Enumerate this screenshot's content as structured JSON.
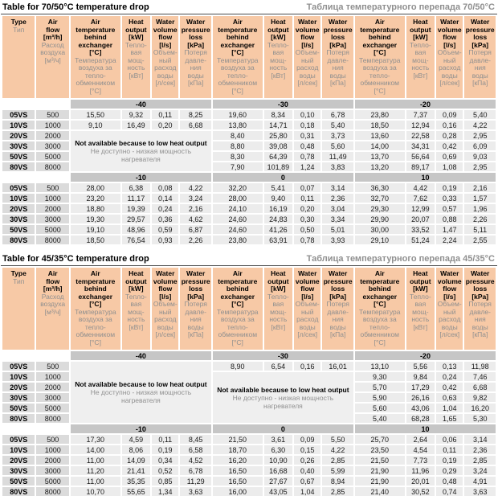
{
  "page": {
    "headers": {
      "type": {
        "en": "Type",
        "ru": "Тип"
      },
      "flow": {
        "en": "Air\nflow\n[m³/h]",
        "ru": "Расход\nвоздуха\n[м³/ч]"
      },
      "group_cols": [
        {
          "en": "Air\ntemperature\nbehind\nexchanger\n[°C]",
          "ru": "Температура\nвоздуха за\nтепло-\nобменником\n[°C]"
        },
        {
          "en": "Heat\noutput\n[kW]",
          "ru": "Тепло-\nвая\nмощ-\nность\n[кВт]"
        },
        {
          "en": "Water\nvolume\nflow\n[l/s]",
          "ru": "Объем-\nный\nрасход\nводы\n[л/сек]"
        },
        {
          "en": "Water\npressure\nloss\n[kPa]",
          "ru": "Потеря\nдавле-\nния\nводы\n[кПа]"
        }
      ]
    },
    "na_text": {
      "en": "Not available because to low heat output",
      "ru": "Не доступно - низкая мощность нагревателя"
    },
    "colors": {
      "header_bg": "#f7c9a6",
      "band_bg": "#c6c6c6",
      "label_bg": "#dbdbdb",
      "cell_bg": "#ececec",
      "ru_text": "#8f8f8f"
    },
    "tables": [
      {
        "title_en": "Table for 70/50°C temperature drop",
        "title_ru": "Таблица температурного перепада 70/50°C",
        "sections": [
          {
            "temps": [
              "-40",
              "-30",
              "-20"
            ],
            "na_blocks": [
              {
                "group": 0,
                "start": 2,
                "span": 4
              }
            ],
            "rows": [
              {
                "type": "05VS",
                "flow": "500",
                "groups": [
                  [
                    "15,50",
                    "9,32",
                    "0,11",
                    "8,25"
                  ],
                  [
                    "19,60",
                    "8,34",
                    "0,10",
                    "6,78"
                  ],
                  [
                    "23,80",
                    "7,37",
                    "0,09",
                    "5,40"
                  ]
                ]
              },
              {
                "type": "10VS",
                "flow": "1000",
                "groups": [
                  [
                    "9,10",
                    "16,49",
                    "0,20",
                    "6,68"
                  ],
                  [
                    "13,80",
                    "14,71",
                    "0,18",
                    "5,40"
                  ],
                  [
                    "18,50",
                    "12,94",
                    "0,16",
                    "4,22"
                  ]
                ]
              },
              {
                "type": "20VS",
                "flow": "2000",
                "groups": [
                  null,
                  [
                    "8,40",
                    "25,80",
                    "0,31",
                    "3,73"
                  ],
                  [
                    "13,60",
                    "22,58",
                    "0,28",
                    "2,95"
                  ]
                ]
              },
              {
                "type": "30VS",
                "flow": "3000",
                "groups": [
                  null,
                  [
                    "8,80",
                    "39,08",
                    "0,48",
                    "5,60"
                  ],
                  [
                    "14,00",
                    "34,31",
                    "0,42",
                    "6,09"
                  ]
                ]
              },
              {
                "type": "50VS",
                "flow": "5000",
                "groups": [
                  null,
                  [
                    "8,30",
                    "64,39",
                    "0,78",
                    "11,49"
                  ],
                  [
                    "13,70",
                    "56,64",
                    "0,69",
                    "9,03"
                  ]
                ]
              },
              {
                "type": "80VS",
                "flow": "8000",
                "groups": [
                  null,
                  [
                    "7,90",
                    "101,89",
                    "1,24",
                    "3,83"
                  ],
                  [
                    "13,20",
                    "89,17",
                    "1,08",
                    "2,95"
                  ]
                ]
              }
            ]
          },
          {
            "temps": [
              "-10",
              "0",
              "10"
            ],
            "na_blocks": [],
            "rows": [
              {
                "type": "05VS",
                "flow": "500",
                "groups": [
                  [
                    "28,00",
                    "6,38",
                    "0,08",
                    "4,22"
                  ],
                  [
                    "32,20",
                    "5,41",
                    "0,07",
                    "3,14"
                  ],
                  [
                    "36,30",
                    "4,42",
                    "0,19",
                    "2,16"
                  ]
                ]
              },
              {
                "type": "10VS",
                "flow": "1000",
                "groups": [
                  [
                    "23,20",
                    "11,17",
                    "0,14",
                    "3,24"
                  ],
                  [
                    "28,00",
                    "9,40",
                    "0,11",
                    "2,36"
                  ],
                  [
                    "32,70",
                    "7,62",
                    "0,33",
                    "1,57"
                  ]
                ]
              },
              {
                "type": "20VS",
                "flow": "2000",
                "groups": [
                  [
                    "18,80",
                    "19,39",
                    "0,24",
                    "2,16"
                  ],
                  [
                    "24,10",
                    "16,19",
                    "0,20",
                    "3,04"
                  ],
                  [
                    "29,30",
                    "12,99",
                    "0,57",
                    "1,96"
                  ]
                ]
              },
              {
                "type": "30VS",
                "flow": "3000",
                "groups": [
                  [
                    "19,30",
                    "29,57",
                    "0,36",
                    "4,62"
                  ],
                  [
                    "24,60",
                    "24,83",
                    "0,30",
                    "3,34"
                  ],
                  [
                    "29,90",
                    "20,07",
                    "0,88",
                    "2,26"
                  ]
                ]
              },
              {
                "type": "50VS",
                "flow": "5000",
                "groups": [
                  [
                    "19,10",
                    "48,96",
                    "0,59",
                    "6,87"
                  ],
                  [
                    "24,60",
                    "41,26",
                    "0,50",
                    "5,01"
                  ],
                  [
                    "30,00",
                    "33,52",
                    "1,47",
                    "5,11"
                  ]
                ]
              },
              {
                "type": "80VS",
                "flow": "8000",
                "groups": [
                  [
                    "18,50",
                    "76,54",
                    "0,93",
                    "2,26"
                  ],
                  [
                    "23,80",
                    "63,91",
                    "0,78",
                    "3,93"
                  ],
                  [
                    "29,10",
                    "51,24",
                    "2,24",
                    "2,55"
                  ]
                ]
              }
            ]
          }
        ]
      },
      {
        "title_en": "Table for 45/35°C temperature drop",
        "title_ru": "Таблица температурного перепада 45/35°C",
        "sections": [
          {
            "temps": [
              "-40",
              "-30",
              "-20"
            ],
            "na_blocks": [
              {
                "group": 0,
                "start": 0,
                "span": 6
              },
              {
                "group": 1,
                "start": 1,
                "span": 5
              }
            ],
            "rows": [
              {
                "type": "05VS",
                "flow": "500",
                "groups": [
                  null,
                  [
                    "8,90",
                    "6,54",
                    "0,16",
                    "16,01"
                  ],
                  [
                    "13,10",
                    "5,56",
                    "0,13",
                    "11,98"
                  ]
                ]
              },
              {
                "type": "10VS",
                "flow": "1000",
                "groups": [
                  null,
                  null,
                  [
                    "9,30",
                    "9,84",
                    "0,24",
                    "7,46"
                  ]
                ]
              },
              {
                "type": "20VS",
                "flow": "2000",
                "groups": [
                  null,
                  null,
                  [
                    "5,70",
                    "17,29",
                    "0,42",
                    "6,68"
                  ]
                ]
              },
              {
                "type": "30VS",
                "flow": "3000",
                "groups": [
                  null,
                  null,
                  [
                    "5,90",
                    "26,16",
                    "0,63",
                    "9,82"
                  ]
                ]
              },
              {
                "type": "50VS",
                "flow": "5000",
                "groups": [
                  null,
                  null,
                  [
                    "5,60",
                    "43,06",
                    "1,04",
                    "16,20"
                  ]
                ]
              },
              {
                "type": "80VS",
                "flow": "8000",
                "groups": [
                  null,
                  null,
                  [
                    "5,40",
                    "68,28",
                    "1,65",
                    "5,30"
                  ]
                ]
              }
            ]
          },
          {
            "temps": [
              "-10",
              "0",
              "10"
            ],
            "na_blocks": [],
            "rows": [
              {
                "type": "05VS",
                "flow": "500",
                "groups": [
                  [
                    "17,30",
                    "4,59",
                    "0,11",
                    "8,45"
                  ],
                  [
                    "21,50",
                    "3,61",
                    "0,09",
                    "5,50"
                  ],
                  [
                    "25,70",
                    "2,64",
                    "0,06",
                    "3,14"
                  ]
                ]
              },
              {
                "type": "10VS",
                "flow": "1000",
                "groups": [
                  [
                    "14,00",
                    "8,06",
                    "0,19",
                    "6,58"
                  ],
                  [
                    "18,70",
                    "6,30",
                    "0,15",
                    "4,22"
                  ],
                  [
                    "23,50",
                    "4,54",
                    "0,11",
                    "2,36"
                  ]
                ]
              },
              {
                "type": "20VS",
                "flow": "2000",
                "groups": [
                  [
                    "11,00",
                    "14,09",
                    "0,34",
                    "4,52"
                  ],
                  [
                    "16,20",
                    "10,90",
                    "0,26",
                    "2,85"
                  ],
                  [
                    "21,50",
                    "7,73",
                    "0,19",
                    "2,85"
                  ]
                ]
              },
              {
                "type": "30VS",
                "flow": "3000",
                "groups": [
                  [
                    "11,20",
                    "21,41",
                    "0,52",
                    "6,78"
                  ],
                  [
                    "16,50",
                    "16,68",
                    "0,40",
                    "5,99"
                  ],
                  [
                    "21,90",
                    "11,96",
                    "0,29",
                    "3,24"
                  ]
                ]
              },
              {
                "type": "50VS",
                "flow": "5000",
                "groups": [
                  [
                    "11,00",
                    "35,35",
                    "0,85",
                    "11,29"
                  ],
                  [
                    "16,50",
                    "27,67",
                    "0,67",
                    "8,94"
                  ],
                  [
                    "21,90",
                    "20,01",
                    "0,48",
                    "4,91"
                  ]
                ]
              },
              {
                "type": "80VS",
                "flow": "8000",
                "groups": [
                  [
                    "10,70",
                    "55,65",
                    "1,34",
                    "3,63"
                  ],
                  [
                    "16,00",
                    "43,05",
                    "1,04",
                    "2,85"
                  ],
                  [
                    "21,40",
                    "30,52",
                    "0,74",
                    "3,63"
                  ]
                ]
              }
            ]
          }
        ]
      }
    ]
  }
}
